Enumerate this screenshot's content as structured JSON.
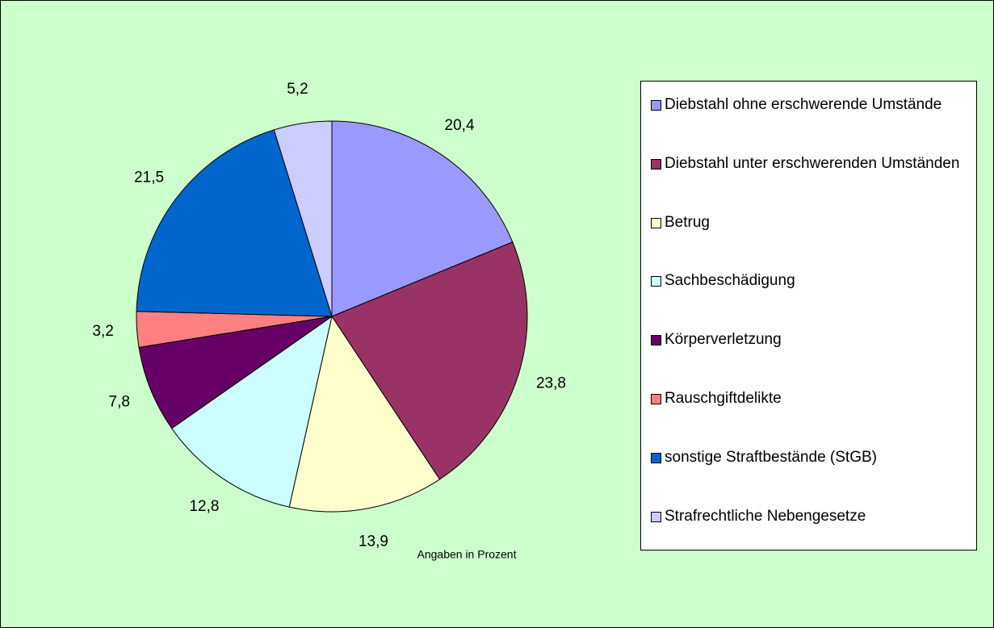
{
  "chart_data": {
    "type": "pie",
    "categories": [
      "Diebstahl ohne erschwerende Umstände",
      "Diebstahl unter erschwerenden Umständen",
      "Betrug",
      "Sachbeschädigung",
      "Körperverletzung",
      "Rauschgiftdelikte",
      "sonstige Straftbestände (StGB)",
      "Strafrechtliche Nebengesetze"
    ],
    "values": [
      20.4,
      23.8,
      13.9,
      12.8,
      7.8,
      3.2,
      21.5,
      5.2
    ],
    "value_labels": [
      "20,4",
      "23,8",
      "13,9",
      "12,8",
      "7,8",
      "3,2",
      "21,5",
      "5,2"
    ],
    "colors": [
      "#9999ff",
      "#993366",
      "#ffffcc",
      "#ccffff",
      "#660066",
      "#ff8080",
      "#0066cc",
      "#ccccff"
    ],
    "annotation": "Angaben in Prozent",
    "legend": "right"
  }
}
